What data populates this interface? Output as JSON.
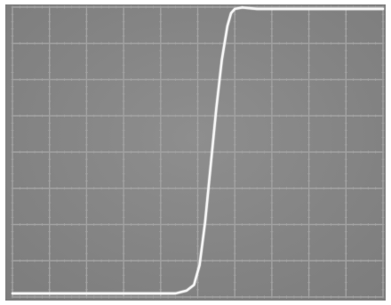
{
  "screen": {
    "background_color": "#8e8e8e",
    "background_dark": "#7c7c7c",
    "grid_color": "#a2a2a2",
    "trace_color": "#f6f6f6",
    "border_color": "#ffffff"
  },
  "graticule": {
    "divisions_x": 10,
    "divisions_y": 8,
    "minor_ticks_per_division": 5
  },
  "trace": {
    "description_type": "step",
    "low_level": 0.0,
    "high_level": 1.0,
    "points": [
      [
        0.0,
        0.0
      ],
      [
        0.37,
        0.0
      ],
      [
        0.44,
        0.0
      ],
      [
        0.47,
        0.01
      ],
      [
        0.49,
        0.03
      ],
      [
        0.505,
        0.1
      ],
      [
        0.52,
        0.25
      ],
      [
        0.535,
        0.45
      ],
      [
        0.55,
        0.65
      ],
      [
        0.565,
        0.82
      ],
      [
        0.58,
        0.94
      ],
      [
        0.59,
        0.985
      ],
      [
        0.6,
        1.0
      ],
      [
        0.62,
        1.005
      ],
      [
        0.66,
        1.0
      ],
      [
        0.75,
        1.0
      ],
      [
        1.0,
        1.0
      ]
    ]
  }
}
